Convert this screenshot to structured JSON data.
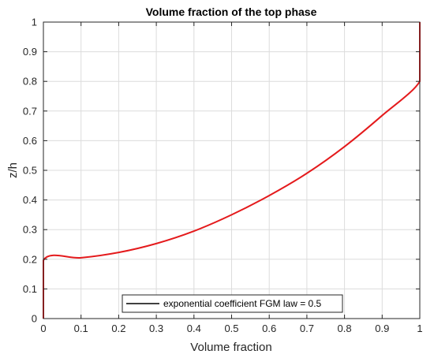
{
  "chart_data": {
    "type": "line",
    "title": "Volume fraction of the top phase",
    "xlabel": "Volume fraction",
    "ylabel": "z/h",
    "xlim": [
      0,
      1
    ],
    "ylim": [
      0,
      1
    ],
    "xticks": [
      0,
      0.1,
      0.2,
      0.3,
      0.4,
      0.5,
      0.6,
      0.7,
      0.8,
      0.9,
      1
    ],
    "yticks": [
      0,
      0.1,
      0.2,
      0.3,
      0.4,
      0.5,
      0.6,
      0.7,
      0.8,
      0.9,
      1
    ],
    "xtick_labels": [
      "0",
      "0.1",
      "0.2",
      "0.3",
      "0.4",
      "0.5",
      "0.6",
      "0.7",
      "0.8",
      "0.9",
      "1"
    ],
    "ytick_labels": [
      "0",
      "0.1",
      "0.2",
      "0.3",
      "0.4",
      "0.5",
      "0.6",
      "0.7",
      "0.8",
      "0.9",
      "1"
    ],
    "grid": true,
    "legend_position": "bottom-center",
    "series": [
      {
        "name": "exponential coefficient FGM law = 0.5",
        "color": "#e41a1c",
        "legend_color": "#000000",
        "x": [
          0,
          0,
          0.1,
          0.2,
          0.3,
          0.4,
          0.5,
          0.6,
          0.7,
          0.8,
          0.9,
          1,
          1,
          1
        ],
        "y": [
          0,
          0.197,
          0.205,
          0.223,
          0.253,
          0.295,
          0.35,
          0.415,
          0.49,
          0.58,
          0.685,
          0.8,
          0.9,
          1
        ]
      }
    ]
  }
}
